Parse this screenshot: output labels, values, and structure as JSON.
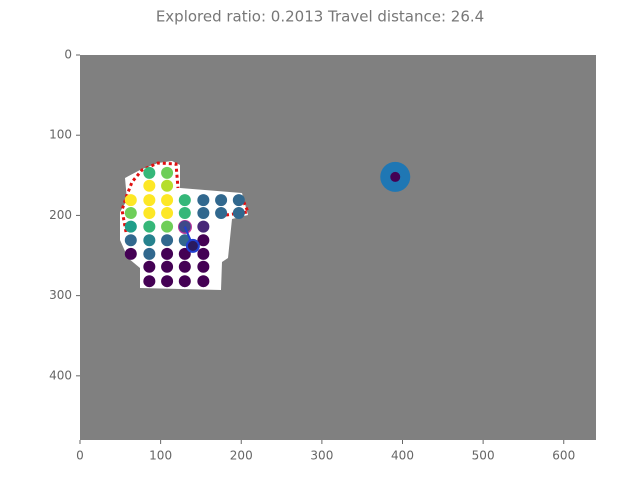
{
  "chart_data": {
    "type": "scatter",
    "title": "Explored ratio: 0.2013  Travel distance: 26.4",
    "xlim": [
      0,
      640
    ],
    "ylim": [
      480,
      0
    ],
    "xticks": [
      0,
      100,
      200,
      300,
      400,
      500,
      600
    ],
    "yticks": [
      0,
      100,
      200,
      300,
      400
    ],
    "background": "#808080",
    "series": [
      {
        "x": [
          86,
          108,
          86,
          108,
          63,
          86,
          108,
          130,
          153,
          175,
          197,
          63,
          86,
          108,
          130,
          153,
          175,
          197,
          63,
          86,
          108,
          130,
          153,
          63,
          86,
          108,
          130,
          153,
          63,
          86,
          108,
          130,
          153,
          86,
          108,
          130,
          153,
          86,
          108,
          130,
          153
        ],
        "values": [
          147,
          147,
          163,
          163,
          181,
          181,
          181,
          181,
          181,
          181,
          181,
          197,
          197,
          197,
          197,
          197,
          197,
          197,
          214,
          214,
          214,
          214,
          214,
          231,
          231,
          231,
          231,
          231,
          248,
          248,
          248,
          248,
          248,
          264,
          264,
          264,
          264,
          282,
          282,
          282,
          282
        ],
        "colors": [
          "#35b779",
          "#6ece58",
          "#fde725",
          "#b5de2b",
          "#fde725",
          "#fde725",
          "#fde725",
          "#35b779",
          "#31688e",
          "#31688e",
          "#31688e",
          "#6ece58",
          "#fde725",
          "#fde725",
          "#35b779",
          "#31688e",
          "#31688e",
          "#31688e",
          "#1f9e89",
          "#35b779",
          "#6ece58",
          "#3e4989",
          "#482878",
          "#31688e",
          "#26828e",
          "#31688e",
          "#31688e",
          "#440154",
          "#440154",
          "#31688e",
          "#440154",
          "#440154",
          "#440154",
          "#440154",
          "#440154",
          "#440154",
          "#440154",
          "#440154",
          "#440154",
          "#440154",
          "#440154"
        ]
      },
      {
        "x": [
          391
        ],
        "values": [
          152
        ],
        "color": "#1f77b4"
      },
      {
        "x": [
          391
        ],
        "values": [
          152
        ],
        "color": "#440154"
      },
      {
        "type": "line",
        "x": [
          130,
          140
        ],
        "values": [
          214,
          238
        ],
        "color": "#1f3fd0"
      },
      {
        "x": [
          140
        ],
        "values": [
          238
        ],
        "color": "#2a1a5e"
      }
    ]
  }
}
